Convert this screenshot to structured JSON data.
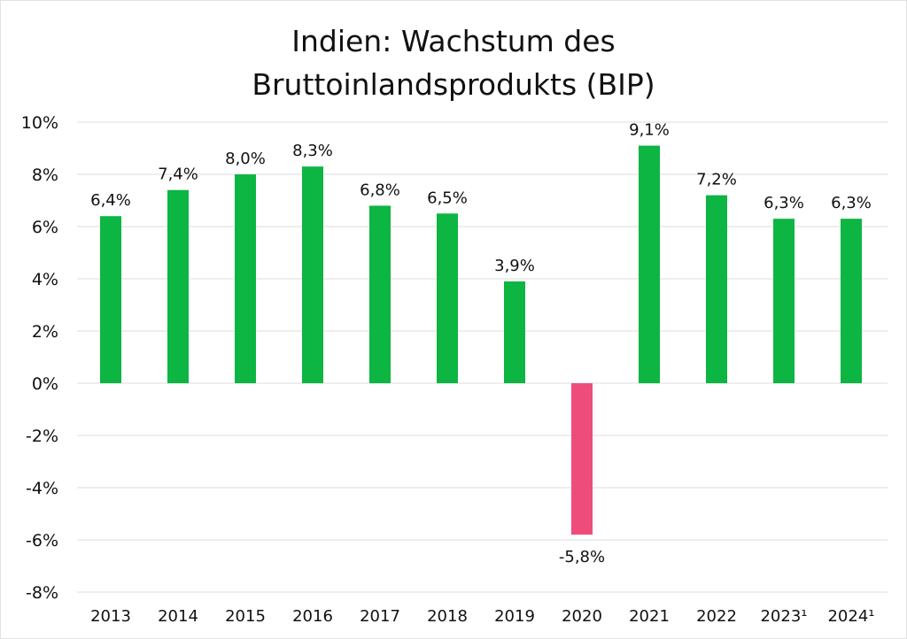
{
  "chart_data": {
    "type": "bar",
    "title_lines": [
      "Indien: Wachstum des",
      "Bruttoinlandsprodukts (BIP)"
    ],
    "categories": [
      "2013",
      "2014",
      "2015",
      "2016",
      "2017",
      "2018",
      "2019",
      "2020",
      "2021",
      "2022",
      "2023¹",
      "2024¹"
    ],
    "values": [
      6.4,
      7.4,
      8.0,
      8.3,
      6.8,
      6.5,
      3.9,
      -5.8,
      9.1,
      7.2,
      6.3,
      6.3
    ],
    "data_labels": [
      "6,4%",
      "7,4%",
      "8,0%",
      "8,3%",
      "6,8%",
      "6,5%",
      "3,9%",
      "-5,8%",
      "9,1%",
      "7,2%",
      "6,3%",
      "6,3%"
    ],
    "xlabel": "",
    "ylabel": "",
    "ylim": [
      -8,
      10
    ],
    "yticks": [
      10,
      8,
      6,
      4,
      2,
      0,
      -2,
      -4,
      -6,
      -8
    ],
    "ytick_labels": [
      "10%",
      "8%",
      "6%",
      "4%",
      "2%",
      "0%",
      "-2%",
      "-4%",
      "-6%",
      "-8%"
    ],
    "grid": true,
    "colors": {
      "positive": "#0db542",
      "negative": "#ee4d7c",
      "grid": "#dedede"
    }
  }
}
